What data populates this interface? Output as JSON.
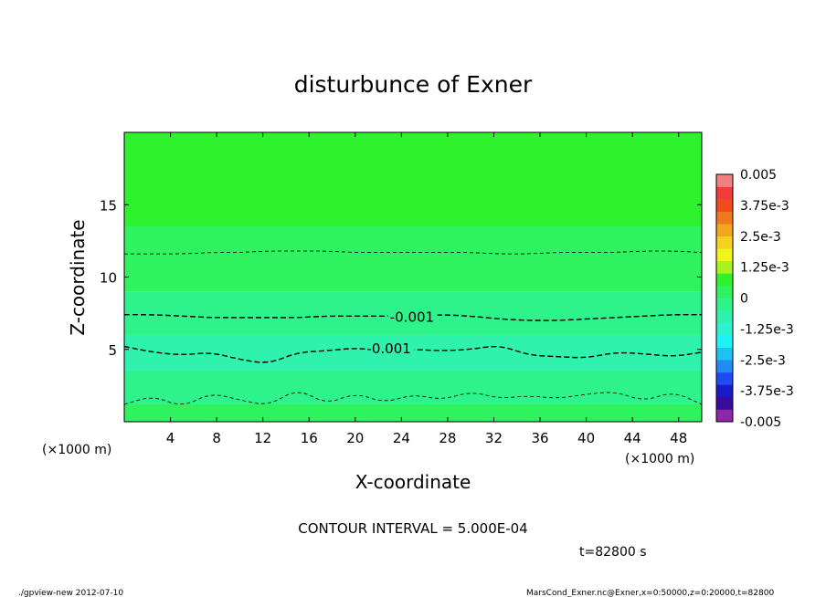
{
  "chart_data": {
    "type": "heatmap",
    "title": "disturbunce of Exner",
    "xlabel": "X-coordinate",
    "ylabel": "Z-coordinate",
    "x_unit": "(×1000 m)",
    "y_unit": "(×1000 m)",
    "xlim": [
      0,
      50
    ],
    "ylim": [
      0,
      20
    ],
    "x_ticks": [
      4,
      8,
      12,
      16,
      20,
      24,
      28,
      32,
      36,
      40,
      44,
      48
    ],
    "y_ticks": [
      5,
      10,
      15
    ],
    "colorbar": {
      "labels": [
        "0.005",
        "3.75e-3",
        "2.5e-3",
        "1.25e-3",
        "0",
        "-1.25e-3",
        "-2.5e-3",
        "-3.75e-3",
        "-0.005"
      ],
      "levels": [
        -0.005,
        -0.0045,
        -0.004,
        -0.0035,
        -0.003,
        -0.0025,
        -0.002,
        -0.0015,
        -0.001,
        -0.0005,
        0,
        0.0005,
        0.001,
        0.0015,
        0.002,
        0.0025,
        0.003,
        0.0035,
        0.004,
        0.0045,
        0.005
      ],
      "colors": [
        "#8d26a8",
        "#3a0c9c",
        "#1a1ac8",
        "#1d4df2",
        "#1e8df2",
        "#1ec1f2",
        "#1ef2f2",
        "#2ef2cf",
        "#2ef2ad",
        "#2ef28a",
        "#2ef25e",
        "#2ef22e",
        "#a8f21e",
        "#f2f21e",
        "#f2d21e",
        "#f2a51e",
        "#f2781e",
        "#f24b1e",
        "#f23c3c",
        "#f28080"
      ]
    },
    "bands": [
      {
        "z_bottom": 0.0,
        "z_top": 1.2,
        "value": -0.0003,
        "color": "#2ef25e"
      },
      {
        "z_bottom": 1.2,
        "z_top": 3.5,
        "value": -0.0007,
        "color": "#2ef28a"
      },
      {
        "z_bottom": 3.5,
        "z_top": 6.0,
        "value": -0.0012,
        "color": "#2ef2ad"
      },
      {
        "z_bottom": 6.0,
        "z_top": 9.0,
        "value": -0.0008,
        "color": "#2ef28a"
      },
      {
        "z_bottom": 9.0,
        "z_top": 13.5,
        "value": -0.0004,
        "color": "#2ef25e"
      },
      {
        "z_bottom": 13.5,
        "z_top": 20.0,
        "value": 0.0002,
        "color": "#2ef22e"
      }
    ],
    "contours": [
      {
        "level": -0.001,
        "label": "-0.001",
        "label_x": 23,
        "z": [
          7.4,
          7.4,
          7.3,
          7.2,
          7.2,
          7.2,
          7.2,
          7.3,
          7.3,
          7.3,
          7.3,
          7.4,
          7.3,
          7.1,
          7.0,
          7.0,
          7.1,
          7.2,
          7.3,
          7.4,
          7.4
        ]
      },
      {
        "level": -0.001,
        "label": "-0.001",
        "label_x": 21,
        "z": [
          5.2,
          4.8,
          4.6,
          4.8,
          4.3,
          4.0,
          4.8,
          4.9,
          5.1,
          4.9,
          5.0,
          4.9,
          5.0,
          5.3,
          4.6,
          4.5,
          4.4,
          4.8,
          4.7,
          4.5,
          4.8
        ]
      },
      {
        "level": -0.0005,
        "label": "",
        "label_x": null,
        "z": [
          11.6,
          11.6,
          11.6,
          11.7,
          11.7,
          11.8,
          11.8,
          11.8,
          11.7,
          11.7,
          11.7,
          11.7,
          11.7,
          11.6,
          11.6,
          11.7,
          11.7,
          11.7,
          11.8,
          11.8,
          11.7
        ]
      },
      {
        "level": 0,
        "label": "",
        "label_x": null,
        "z": [
          1.2,
          1.8,
          1.0,
          2.0,
          1.5,
          1.1,
          2.3,
          1.2,
          2.0,
          1.3,
          1.9,
          1.5,
          2.1,
          1.6,
          1.8,
          1.6,
          1.9,
          2.1,
          1.4,
          2.1,
          1.2
        ]
      }
    ],
    "x_fine": [
      0,
      2.5,
      5,
      7.5,
      10,
      12.5,
      15,
      17.5,
      20,
      22.5,
      25,
      27.5,
      30,
      32.5,
      35,
      37.5,
      40,
      42.5,
      45,
      47.5,
      50
    ],
    "grid": false,
    "legend": "right"
  },
  "contour_interval": "CONTOUR INTERVAL = 5.000E-04",
  "time": "t=82800  s",
  "footer_left": "./gpview-new  2012-07-10",
  "footer_right": "MarsCond_Exner.nc@Exner,x=0:50000,z=0:20000,t=82800"
}
